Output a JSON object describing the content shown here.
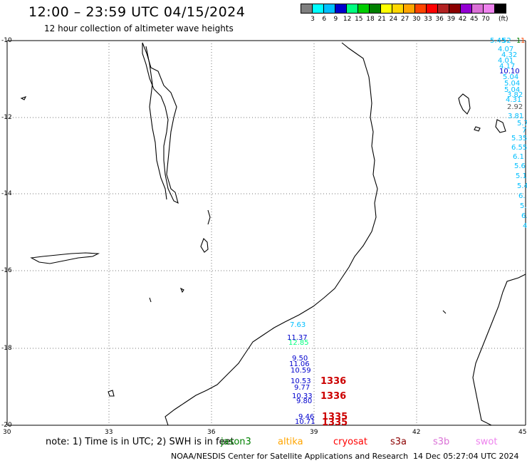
{
  "header": {
    "title": "12:00 – 23:59 UTC 04/15/2024",
    "subtitle": "12 hour collection of altimeter wave heights"
  },
  "colorbar": {
    "colors": [
      "#7f7f7f",
      "#00ffff",
      "#00bfff",
      "#0000cd",
      "#00ff7f",
      "#00cd00",
      "#008000",
      "#ffff00",
      "#ffd700",
      "#ffa500",
      "#ff4500",
      "#ff0000",
      "#b22222",
      "#8b0000",
      "#9400d3",
      "#da70d6",
      "#ee82ee",
      "#000000"
    ],
    "labels": [
      "3",
      "6",
      "9",
      "12",
      "15",
      "18",
      "21",
      "24",
      "27",
      "30",
      "33",
      "36",
      "39",
      "42",
      "45",
      "70"
    ],
    "unit": "(ft)"
  },
  "axes": {
    "lat_labels": [
      "-10",
      "-12",
      "-14",
      "-16",
      "-18",
      "-20"
    ],
    "lon_labels": [
      "30",
      "33",
      "36",
      "39",
      "42",
      "45"
    ]
  },
  "observations": [
    {
      "text": "5.45",
      "color": "#00bfff"
    },
    {
      "text": "52",
      "color": "#00bfff"
    },
    {
      "text": "1",
      "color": "#008000"
    },
    {
      "text": "1",
      "color": "#ff4500"
    },
    {
      "text": "4.07",
      "color": "#00bfff"
    },
    {
      "text": "4.32",
      "color": "#00bfff"
    },
    {
      "text": "4.01",
      "color": "#00bfff"
    },
    {
      "text": "4.17",
      "color": "#00bfff"
    },
    {
      "text": "10.10",
      "color": "#0000cd"
    },
    {
      "text": "5.04",
      "color": "#00bfff"
    },
    {
      "text": "5.04",
      "color": "#00bfff"
    },
    {
      "text": "5.04",
      "color": "#00bfff"
    },
    {
      "text": "3.82",
      "color": "#00bfff"
    },
    {
      "text": "4.31",
      "color": "#00bfff"
    },
    {
      "text": "2.92",
      "color": "#555555"
    },
    {
      "text": "3.81",
      "color": "#00bfff"
    },
    {
      "text": "5.7",
      "color": "#00bfff"
    },
    {
      "text": "7",
      "color": "#00bfff"
    },
    {
      "text": "5.35",
      "color": "#00bfff"
    },
    {
      "text": "6.55",
      "color": "#00bfff"
    },
    {
      "text": "6.1",
      "color": "#00bfff"
    },
    {
      "text": "5.6",
      "color": "#00bfff"
    },
    {
      "text": "5.1",
      "color": "#00bfff"
    },
    {
      "text": "5.4",
      "color": "#00bfff"
    },
    {
      "text": "6.",
      "color": "#00bfff"
    },
    {
      "text": "5.",
      "color": "#00bfff"
    },
    {
      "text": "6.",
      "color": "#00bfff"
    },
    {
      "text": "4",
      "color": "#00bfff"
    },
    {
      "text": "7.63",
      "color": "#00bfff"
    },
    {
      "text": "11.37",
      "color": "#0000cd"
    },
    {
      "text": "12.85",
      "color": "#00ff7f"
    },
    {
      "text": "9.50",
      "color": "#0000cd"
    },
    {
      "text": "11.06",
      "color": "#0000cd"
    },
    {
      "text": "10.59",
      "color": "#0000cd"
    },
    {
      "text": "10.53",
      "color": "#0000cd"
    },
    {
      "text": "9.77",
      "color": "#0000cd"
    },
    {
      "text": "10.33",
      "color": "#0000cd"
    },
    {
      "text": "9.80",
      "color": "#0000cd"
    },
    {
      "text": "9.46",
      "color": "#0000cd"
    },
    {
      "text": "10.71",
      "color": "#0000cd"
    }
  ],
  "big_labels": [
    {
      "text": "1336",
      "color": "#cc0000"
    },
    {
      "text": "1336",
      "color": "#cc0000"
    },
    {
      "text": "1335",
      "color": "#cc0000"
    },
    {
      "text": "1335",
      "color": "#cc0000"
    }
  ],
  "footer": {
    "note": "note: 1) Time is in UTC; 2) SWH is in feet",
    "satellites": [
      {
        "name": "jason3",
        "color": "#008000"
      },
      {
        "name": "altika",
        "color": "#ffa500"
      },
      {
        "name": "cryosat",
        "color": "#ff0000"
      },
      {
        "name": "s3a",
        "color": "#8b0000"
      },
      {
        "name": "s3b",
        "color": "#da70d6"
      },
      {
        "name": "swot",
        "color": "#ee82ee"
      }
    ],
    "credit": "NOAA/NESDIS Center for Satellite Applications and Research",
    "timestamp": "14 Dec 05:27:04 UTC 2024"
  }
}
